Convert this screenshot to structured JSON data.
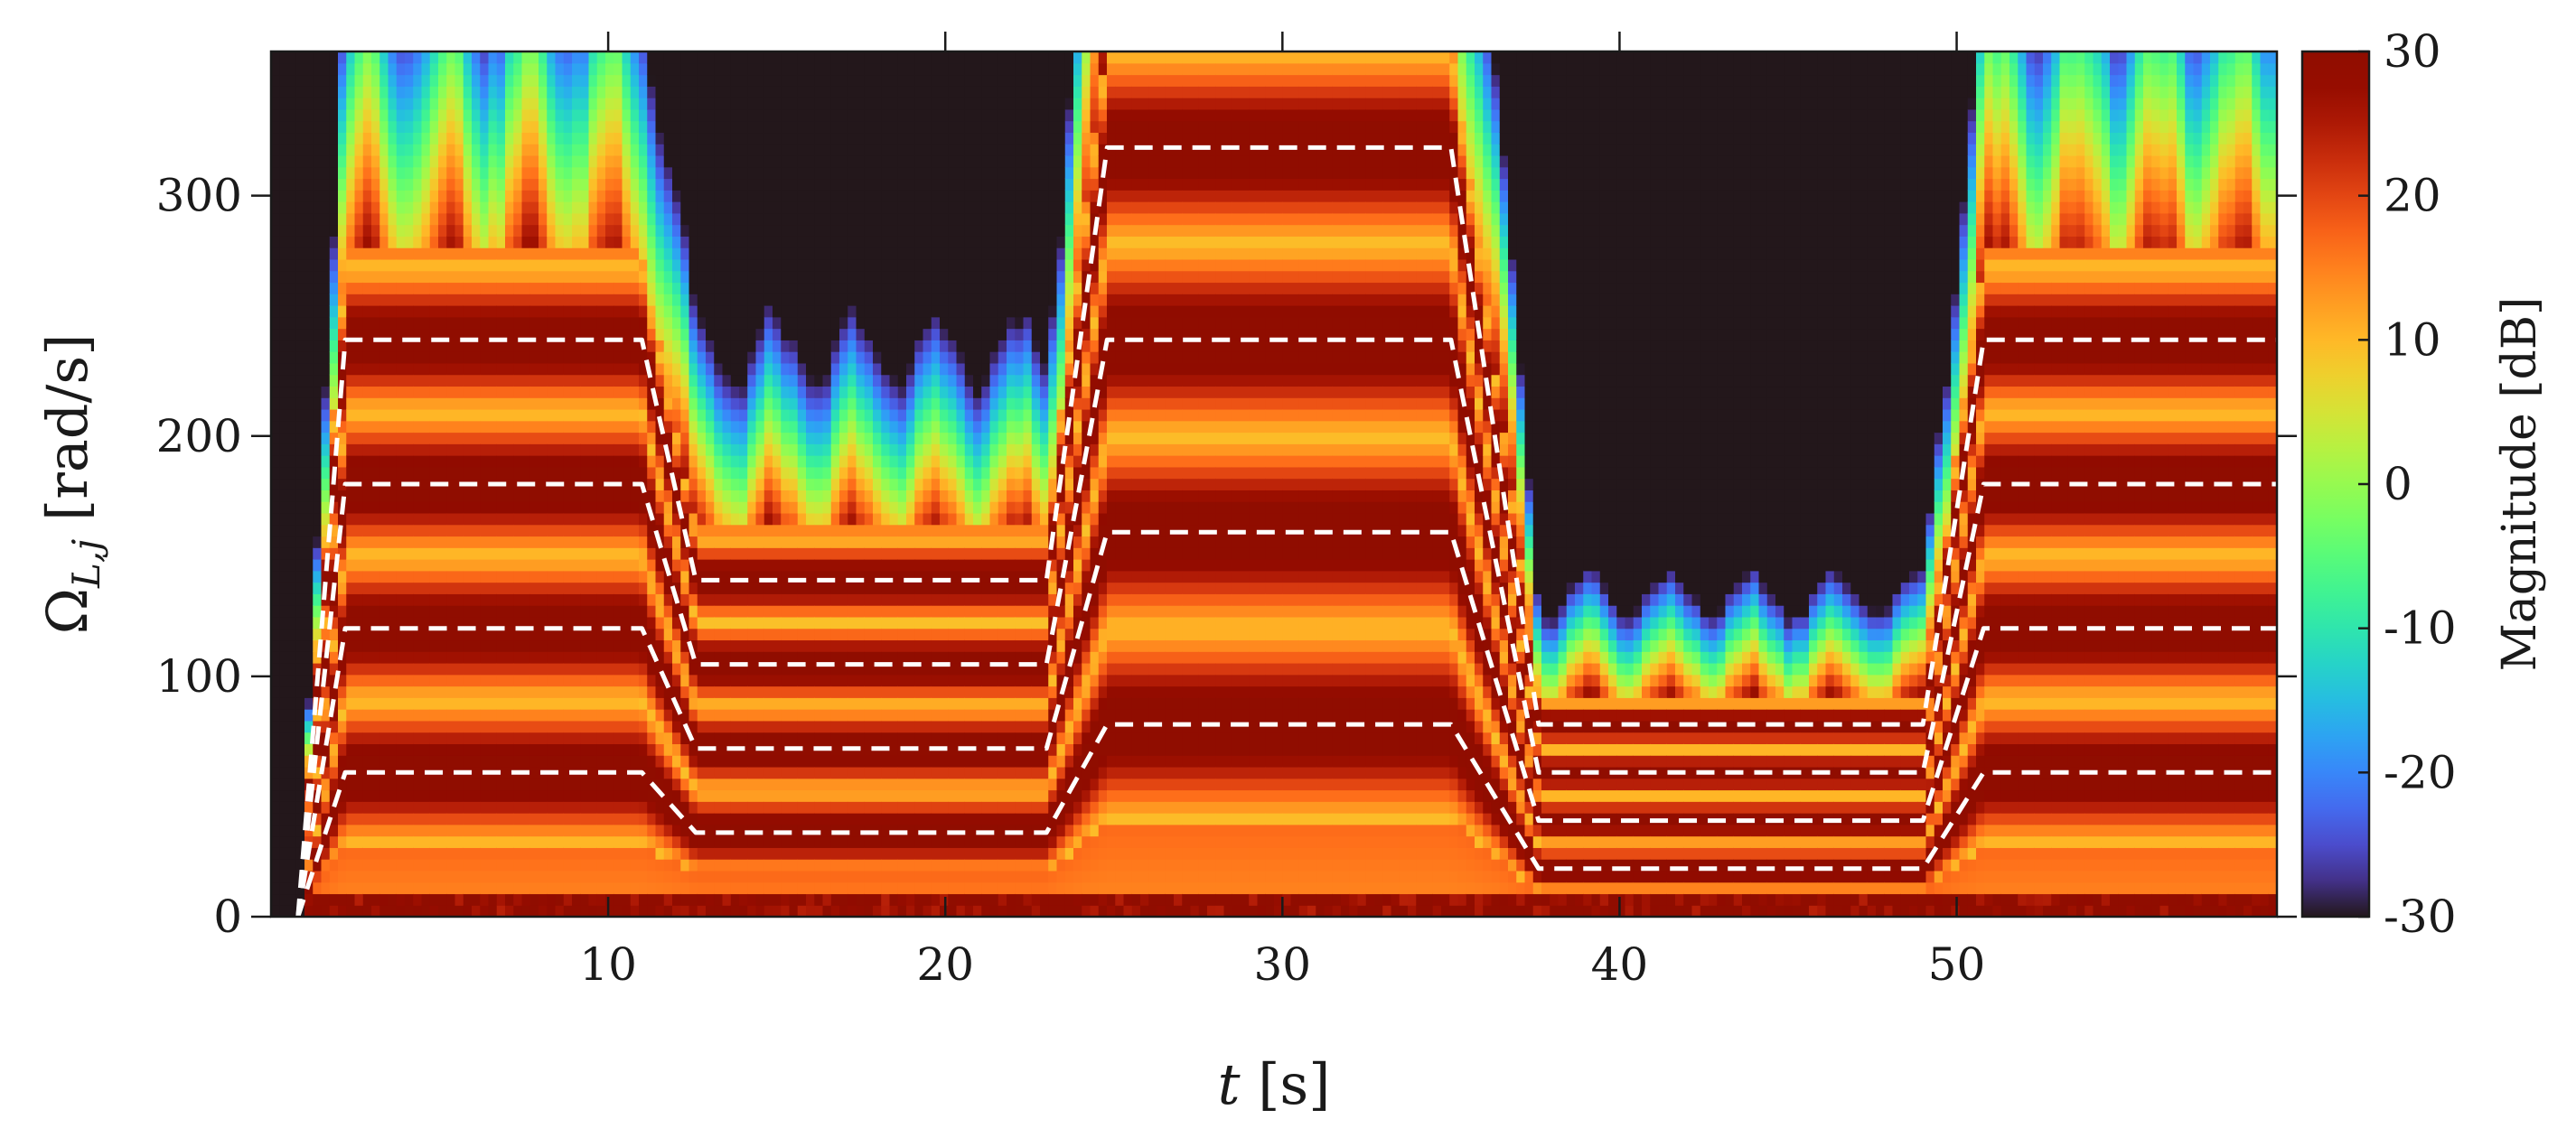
{
  "chart_data": {
    "type": "heatmap",
    "xlabel": {
      "var": "t",
      "unit": "[s]"
    },
    "ylabel": {
      "var": "Ω",
      "sub": "L,j",
      "unit": "[rad/s]"
    },
    "colorbar_label": "Magnitude [dB]",
    "xlim": [
      0,
      59.5
    ],
    "ylim": [
      0,
      360
    ],
    "clim": [
      -30,
      30
    ],
    "x_ticks": [
      10,
      20,
      30,
      40,
      50
    ],
    "y_ticks": [
      0,
      100,
      200,
      300
    ],
    "colorbar_ticks": [
      30,
      20,
      10,
      0,
      -10,
      -20,
      -30
    ],
    "colormap": "turbo",
    "colors": {
      "background": "#2e1442",
      "dashed_overlay": "#ffffff",
      "band_peak": "#7a0403"
    },
    "segments": [
      {
        "t": [
          0,
          11
        ],
        "f0": 60,
        "harmonics": 4
      },
      {
        "t": [
          12.5,
          23
        ],
        "f0": 35,
        "harmonics": 4
      },
      {
        "t": [
          25,
          35
        ],
        "f0": 80,
        "harmonics": 4
      },
      {
        "t": [
          38,
          49
        ],
        "f0": 20,
        "harmonics": 4
      },
      {
        "t": [
          50.5,
          59.5
        ],
        "f0": 60,
        "harmonics": 4
      }
    ],
    "order_tracks": [
      {
        "order": 1,
        "points": [
          [
            0.8,
            0
          ],
          [
            2.2,
            60
          ],
          [
            11,
            60
          ],
          [
            12.6,
            35
          ],
          [
            23,
            35
          ],
          [
            24.8,
            80
          ],
          [
            35,
            80
          ],
          [
            37.6,
            20
          ],
          [
            49,
            20
          ],
          [
            50.8,
            60
          ],
          [
            59.5,
            60
          ]
        ]
      },
      {
        "order": 2,
        "points": [
          [
            0.8,
            0
          ],
          [
            2.2,
            120
          ],
          [
            11,
            120
          ],
          [
            12.6,
            70
          ],
          [
            23,
            70
          ],
          [
            24.8,
            160
          ],
          [
            35,
            160
          ],
          [
            37.6,
            40
          ],
          [
            49,
            40
          ],
          [
            50.8,
            120
          ],
          [
            59.5,
            120
          ]
        ]
      },
      {
        "order": 3,
        "points": [
          [
            0.8,
            0
          ],
          [
            2.2,
            180
          ],
          [
            11,
            180
          ],
          [
            12.6,
            105
          ],
          [
            23,
            105
          ],
          [
            24.8,
            240
          ],
          [
            35,
            240
          ],
          [
            37.6,
            60
          ],
          [
            49,
            60
          ],
          [
            50.8,
            180
          ],
          [
            59.5,
            180
          ]
        ]
      },
      {
        "order": 4,
        "points": [
          [
            0.8,
            0
          ],
          [
            2.2,
            240
          ],
          [
            11,
            240
          ],
          [
            12.6,
            140
          ],
          [
            23,
            140
          ],
          [
            24.8,
            320
          ],
          [
            35,
            320
          ],
          [
            37.6,
            80
          ],
          [
            49,
            80
          ],
          [
            50.8,
            240
          ],
          [
            59.5,
            240
          ]
        ]
      }
    ]
  }
}
